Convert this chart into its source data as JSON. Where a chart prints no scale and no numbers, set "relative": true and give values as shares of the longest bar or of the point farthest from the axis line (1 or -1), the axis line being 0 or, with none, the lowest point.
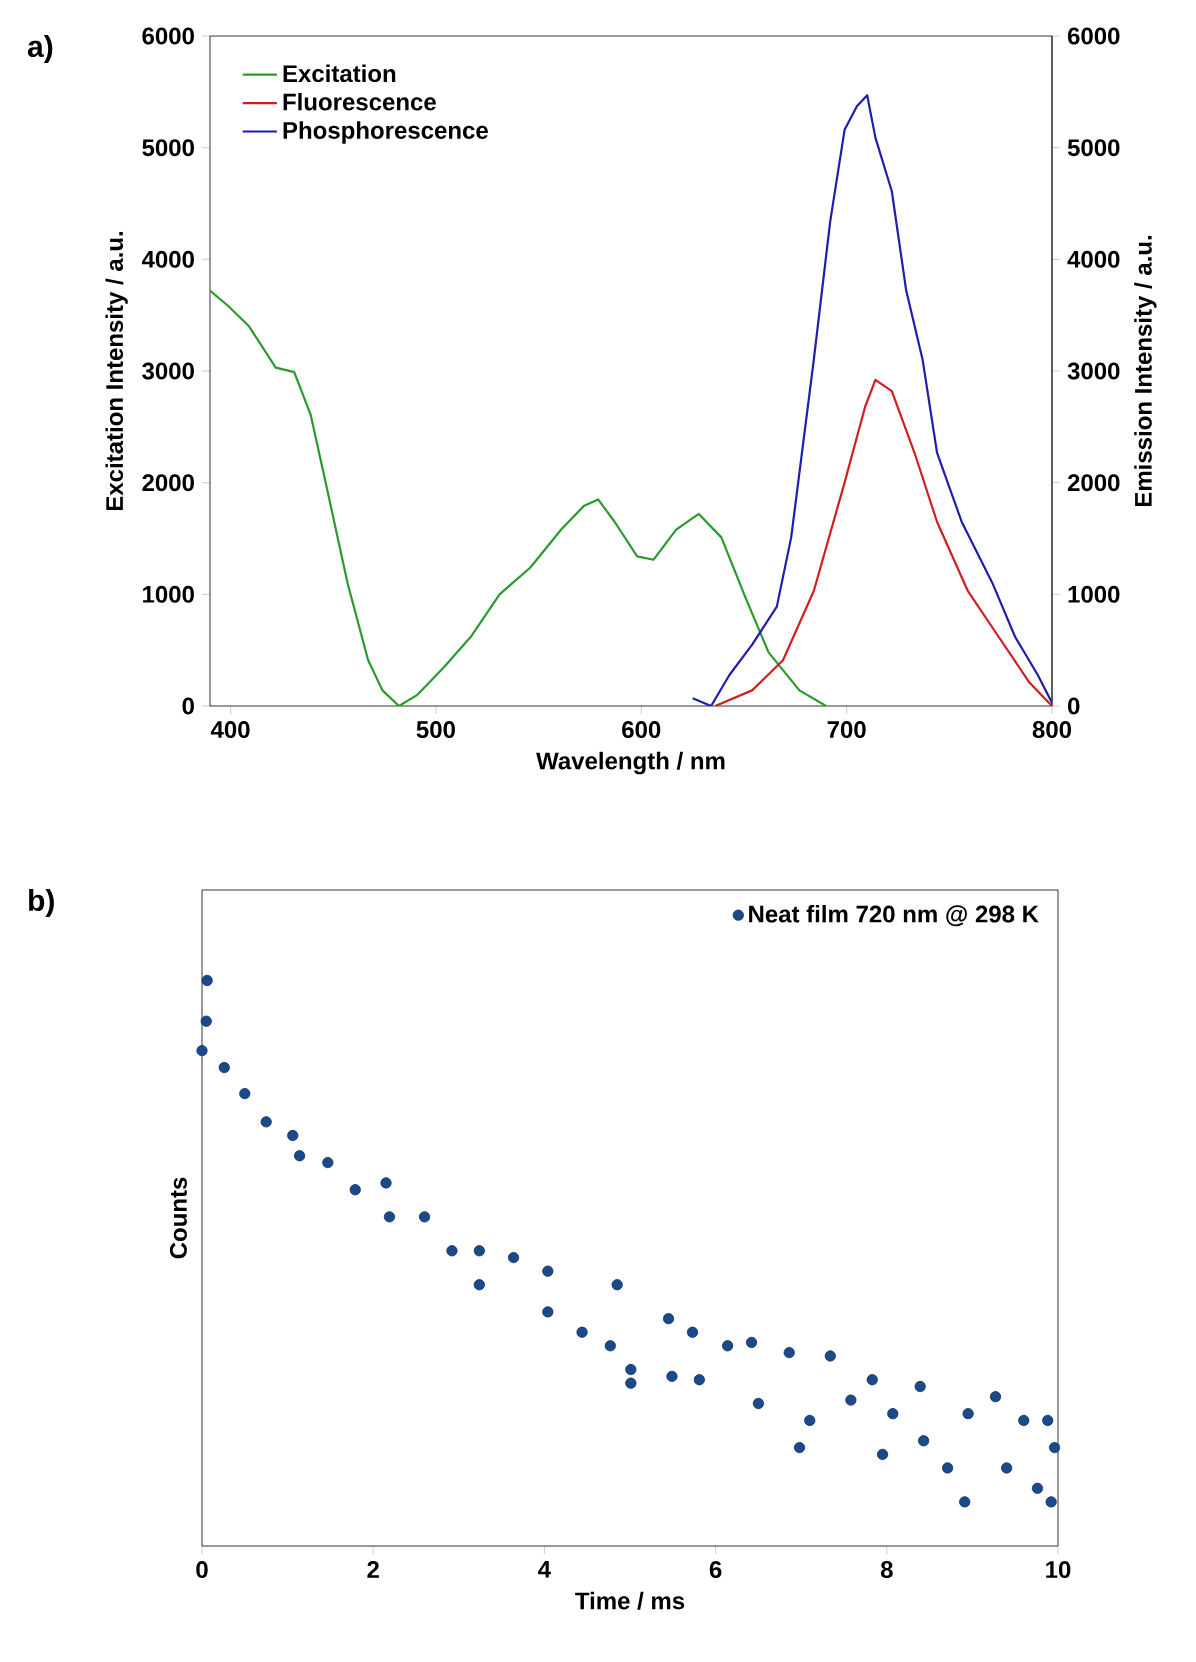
{
  "chart_data": [
    {
      "type": "line",
      "title": "a)",
      "xlabel": "Wavelength / nm",
      "ylabel": "Excitation Intensity / a.u.",
      "y2label": "Emission Intensity / a.u.",
      "xlim": [
        390,
        800
      ],
      "xticks": [
        400,
        500,
        600,
        700,
        800
      ],
      "ylim": [
        0,
        6000
      ],
      "yticks": [
        0,
        1000,
        2000,
        3000,
        4000,
        5000,
        6000
      ],
      "y2lim": [
        0,
        6000
      ],
      "y2ticks": [
        0,
        1000,
        2000,
        3000,
        4000,
        5000,
        6000
      ],
      "legend": "top left",
      "line_style": "solid",
      "series": [
        {
          "name": "Excitation",
          "color": "#2a9a2a",
          "x": [
            390,
            399,
            409,
            422,
            431,
            439,
            448,
            457,
            467,
            474,
            482,
            491,
            504,
            517,
            531,
            546,
            561,
            572,
            579,
            587,
            598,
            606,
            617,
            628,
            639,
            651,
            662,
            677,
            690
          ],
          "values": [
            3720,
            3580,
            3400,
            3030,
            2990,
            2610,
            1860,
            1100,
            410,
            140,
            0,
            100,
            350,
            620,
            1000,
            1240,
            1580,
            1790,
            1850,
            1650,
            1340,
            1310,
            1580,
            1720,
            1510,
            960,
            480,
            140,
            0
          ]
        },
        {
          "name": "Fluorescence",
          "color": "#d21e1e",
          "axis": "y2",
          "x": [
            636,
            654,
            669,
            684,
            699,
            709,
            714,
            722,
            733,
            744,
            759,
            774,
            789,
            800
          ],
          "values": [
            0,
            140,
            410,
            1030,
            2000,
            2680,
            2920,
            2820,
            2270,
            1650,
            1030,
            620,
            210,
            0
          ]
        },
        {
          "name": "Phosphorescence",
          "color": "#1e1eaa",
          "axis": "y2",
          "x": [
            625,
            634,
            643,
            654,
            666,
            673,
            684,
            692,
            699,
            705,
            710,
            714,
            722,
            729,
            737,
            744,
            756,
            771,
            782,
            793,
            800
          ],
          "values": [
            70,
            0,
            280,
            550,
            890,
            1510,
            3100,
            4340,
            5160,
            5370,
            5470,
            5090,
            4610,
            3720,
            3100,
            2270,
            1650,
            1100,
            620,
            280,
            30
          ]
        }
      ]
    },
    {
      "type": "scatter",
      "title": "b)",
      "xlabel": "Time / ms",
      "ylabel": "Counts",
      "relative": true,
      "xlim": [
        0,
        10
      ],
      "xticks": [
        0,
        2,
        4,
        6,
        8,
        10
      ],
      "legend": "top right",
      "marker": "circle",
      "series": [
        {
          "name": "Neat film 720 nm @ 298 K",
          "color": "#1b4a8a",
          "x": [
            0.06,
            0.05,
            0,
            0.26,
            0.5,
            0.75,
            1.06,
            1.14,
            1.47,
            1.79,
            2.15,
            2.19,
            2.6,
            2.92,
            3.24,
            3.24,
            3.64,
            4.04,
            4.04,
            4.44,
            4.85,
            4.77,
            5.01,
            5.01,
            5.45,
            5.49,
            5.73,
            5.81,
            6.14,
            6.42,
            6.5,
            6.86,
            6.98,
            7.1,
            7.34,
            7.58,
            7.83,
            7.95,
            8.07,
            8.39,
            8.43,
            8.71,
            8.91,
            8.95,
            9.27,
            9.4,
            9.6,
            9.76,
            9.88,
            9.92,
            9.96
          ],
          "values": [
            1.0,
            0.928,
            0.876,
            0.846,
            0.8,
            0.75,
            0.726,
            0.69,
            0.678,
            0.63,
            0.642,
            0.582,
            0.582,
            0.522,
            0.522,
            0.462,
            0.51,
            0.486,
            0.414,
            0.378,
            0.462,
            0.354,
            0.288,
            0.312,
            0.402,
            0.3,
            0.378,
            0.294,
            0.354,
            0.36,
            0.252,
            0.342,
            0.174,
            0.222,
            0.336,
            0.258,
            0.294,
            0.162,
            0.234,
            0.282,
            0.186,
            0.138,
            0.078,
            0.234,
            0.264,
            0.138,
            0.222,
            0.102,
            0.222,
            0.078,
            0.174
          ]
        }
      ]
    }
  ]
}
